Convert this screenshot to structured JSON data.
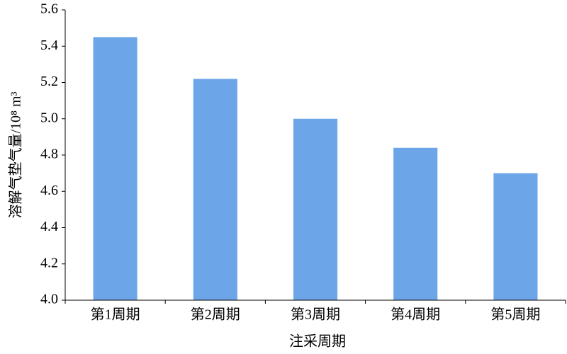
{
  "chart_data": {
    "type": "bar",
    "y_label": "溶解气垫气量/10⁸ m³",
    "x_label": "注采周期",
    "categories": [
      "第1周期",
      "第2周期",
      "第3周期",
      "第4周期",
      "第5周期"
    ],
    "values": [
      5.45,
      5.22,
      5.0,
      4.84,
      4.7
    ],
    "color": "#6ca6e8",
    "ylim": [
      4.0,
      5.6
    ],
    "yticks": [
      {
        "value": 4.0,
        "label": "4.0"
      },
      4.2,
      4.4,
      4.6,
      4.8,
      {
        "value": 5.0,
        "label": "5.0"
      },
      5.2,
      5.4,
      5.6
    ],
    "grid": false
  }
}
